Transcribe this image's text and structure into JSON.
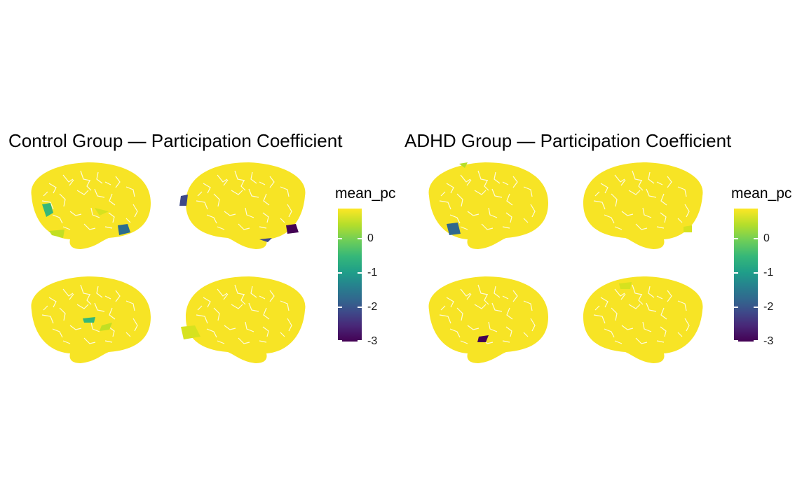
{
  "panels": [
    {
      "title": "Control Group — Participation Coefficient",
      "legend": {
        "title": "mean_pc",
        "ticks": [
          "0",
          "-1",
          "-2",
          "-3"
        ]
      }
    },
    {
      "title": "ADHD Group — Participation Coefficient",
      "legend": {
        "title": "mean_pc",
        "ticks": [
          "0",
          "-1",
          "-2",
          "-3"
        ]
      }
    }
  ],
  "colors": {
    "base": "#f7e425",
    "scale": [
      "#fde725",
      "#35b779",
      "#31688e",
      "#440154"
    ]
  }
}
